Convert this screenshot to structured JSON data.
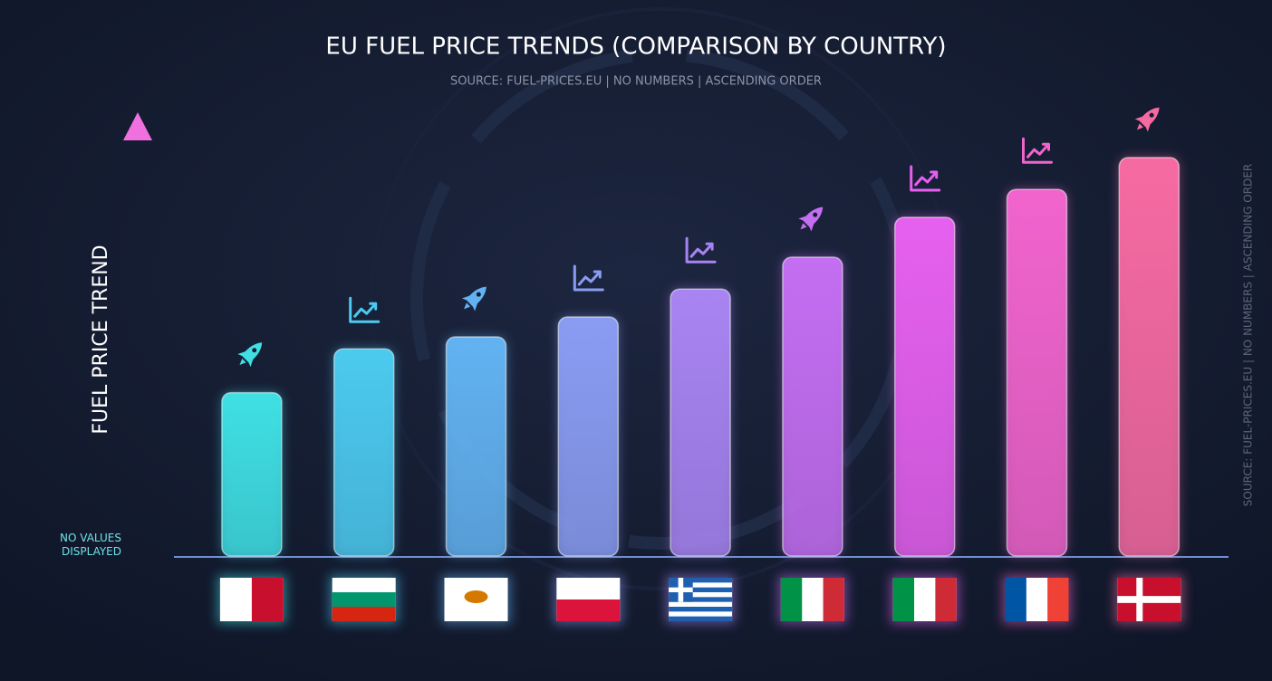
{
  "chart_data": {
    "type": "bar",
    "title": "EU FUEL PRICE TRENDS (COMPARISON BY COUNTRY)",
    "subtitle": "SOURCE: FUEL-PRICES.EU | NO NUMBERS | ASCENDING ORDER",
    "y_label": "FUEL PRICE TREND",
    "note": "NO VALUES DISPLAYED",
    "side_note": "SOURCE: FUEL-PRICES.EU | NO NUMBERS | ASCENDING ORDER",
    "values": [
      41,
      52,
      55,
      60,
      67,
      75,
      85,
      92,
      100
    ],
    "colors": [
      "#3fe0e4",
      "#4ccaef",
      "#62b2f1",
      "#8a9cf2",
      "#a884f2",
      "#c46ef2",
      "#e660ef",
      "#f164cd",
      "#f66aa2"
    ]
  }
}
